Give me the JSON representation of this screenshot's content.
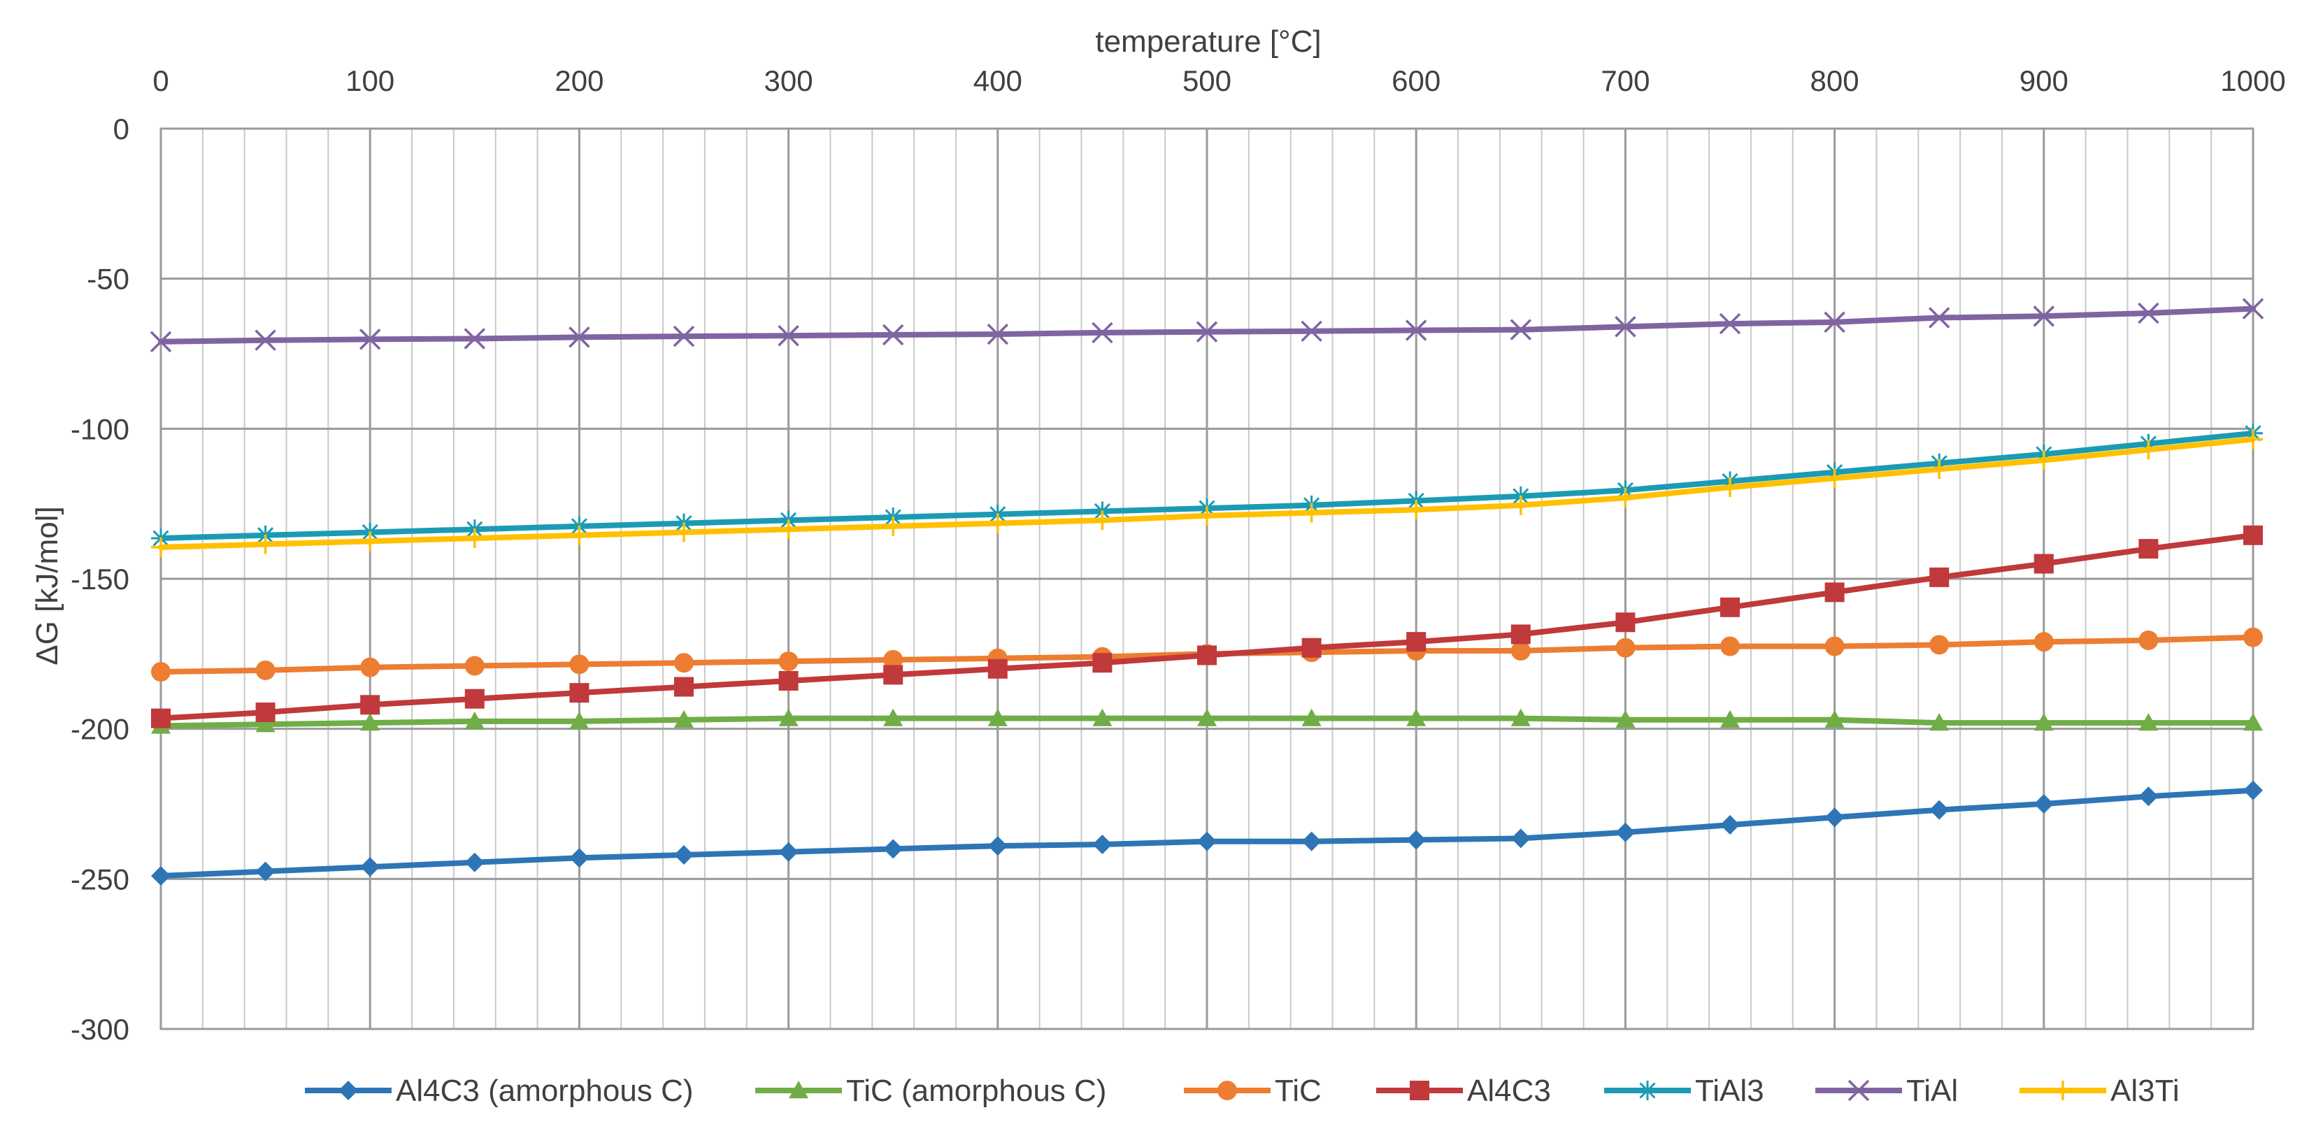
{
  "chart_data": {
    "type": "line",
    "xlabel": "temperature [°C]",
    "ylabel": "ΔG [kJ/mol]",
    "xlim": [
      0,
      1000
    ],
    "ylim": [
      -300,
      0
    ],
    "x_ticks": [
      "0",
      "100",
      "200",
      "300",
      "400",
      "500",
      "600",
      "700",
      "800",
      "900",
      "1000"
    ],
    "y_ticks": [
      "0",
      "-50",
      "-100",
      "-150",
      "-200",
      "-250",
      "-300"
    ],
    "x_tick_values": [
      0,
      100,
      200,
      300,
      400,
      500,
      600,
      700,
      800,
      900,
      1000
    ],
    "y_tick_values": [
      0,
      -50,
      -100,
      -150,
      -200,
      -250,
      -300
    ],
    "x_minor_step": 20,
    "grid": true,
    "legend_position": "bottom",
    "x": [
      0,
      50,
      100,
      150,
      200,
      250,
      300,
      350,
      400,
      450,
      500,
      550,
      600,
      650,
      700,
      750,
      800,
      850,
      900,
      950,
      1000
    ],
    "series": [
      {
        "name": "Al4C3 (amorphous C)",
        "color": "#2e75b6",
        "marker": "diamond",
        "values": [
          -249,
          -247.5,
          -246,
          -244.5,
          -243,
          -242,
          -241,
          -240,
          -239,
          -238.5,
          -237.5,
          -237.5,
          -237,
          -236.5,
          -234.5,
          -232,
          -229.5,
          -227,
          -225,
          -222.5,
          -220.5
        ]
      },
      {
        "name": "TiC (amorphous C)",
        "color": "#70ad47",
        "marker": "triangle",
        "values": [
          -199,
          -198.5,
          -198,
          -197.5,
          -197.5,
          -197,
          -196.5,
          -196.5,
          -196.5,
          -196.5,
          -196.5,
          -196.5,
          -196.5,
          -196.5,
          -197,
          -197,
          -197,
          -198,
          -198,
          -198,
          -198
        ]
      },
      {
        "name": "TiC",
        "color": "#ed7d31",
        "marker": "circle",
        "values": [
          -181,
          -180.5,
          -179.5,
          -179,
          -178.5,
          -178,
          -177.5,
          -177,
          -176.5,
          -176,
          -175,
          -174.5,
          -174,
          -174,
          -173,
          -172.5,
          -172.5,
          -172,
          -171,
          -170.5,
          -169.5
        ]
      },
      {
        "name": "Al4C3",
        "color": "#c0393b",
        "marker": "square",
        "values": [
          -196.5,
          -194.5,
          -192,
          -190,
          -188,
          -186,
          -184,
          -182,
          -180,
          -178,
          -175.5,
          -173,
          -171,
          -168.5,
          -164.5,
          -159.5,
          -154.5,
          -149.5,
          -145,
          -140,
          -135.5
        ]
      },
      {
        "name": "TiAl3",
        "color": "#1b9bb3",
        "marker": "asterisk",
        "values": [
          -136.5,
          -135.5,
          -134.5,
          -133.5,
          -132.5,
          -131.5,
          -130.5,
          -129.5,
          -128.5,
          -127.5,
          -126.5,
          -125.5,
          -124,
          -122.5,
          -120.5,
          -117.5,
          -114.5,
          -111.5,
          -108.5,
          -105,
          -101.5
        ]
      },
      {
        "name": "TiAl",
        "color": "#8064a2",
        "marker": "x",
        "values": [
          -71,
          -70.5,
          -70.2,
          -70,
          -69.5,
          -69.2,
          -69,
          -68.7,
          -68.5,
          -68,
          -67.7,
          -67.5,
          -67.2,
          -67,
          -66,
          -65,
          -64.5,
          -63,
          -62.5,
          -61.5,
          -60
        ]
      },
      {
        "name": "Al3Ti",
        "color": "#ffc000",
        "marker": "plus",
        "values": [
          -139.5,
          -138.5,
          -137.5,
          -136.5,
          -135.5,
          -134.5,
          -133.5,
          -132.5,
          -131.5,
          -130.5,
          -129,
          -128,
          -127,
          -125.5,
          -123,
          -119.5,
          -116.5,
          -113.5,
          -110.5,
          -107,
          -103.5
        ]
      }
    ]
  }
}
